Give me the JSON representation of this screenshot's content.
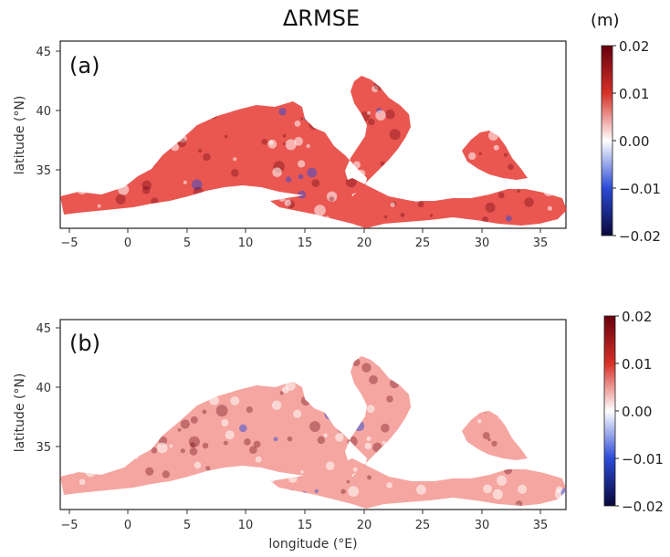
{
  "figure": {
    "title": "ΔRMSE",
    "unit": "(m)",
    "xlabel": "longitude (°E)",
    "ylabel": "latitude  (°N)"
  },
  "colorbar": {
    "ticks": [
      "0.02",
      "0.01",
      "0.00",
      "−0.01",
      "−0.02"
    ],
    "colors": {
      "max": "#67000d",
      "high": "#d73027",
      "mid": "#ffffff",
      "low": "#2c4bd6",
      "min": "#08083a"
    }
  },
  "panels": [
    {
      "label": "(a)",
      "xticks": [
        "−5",
        "0",
        "5",
        "10",
        "15",
        "20",
        "25",
        "30",
        "35"
      ],
      "yticks": [
        "45",
        "40",
        "35"
      ],
      "field_color": "#e63a33",
      "field_opacity": 0.85
    },
    {
      "label": "(b)",
      "xticks": [
        "−5",
        "0",
        "5",
        "10",
        "15",
        "20",
        "25",
        "30",
        "35"
      ],
      "yticks": [
        "45",
        "40",
        "35"
      ],
      "field_color": "#ef6b62",
      "field_opacity": 0.6
    }
  ]
}
